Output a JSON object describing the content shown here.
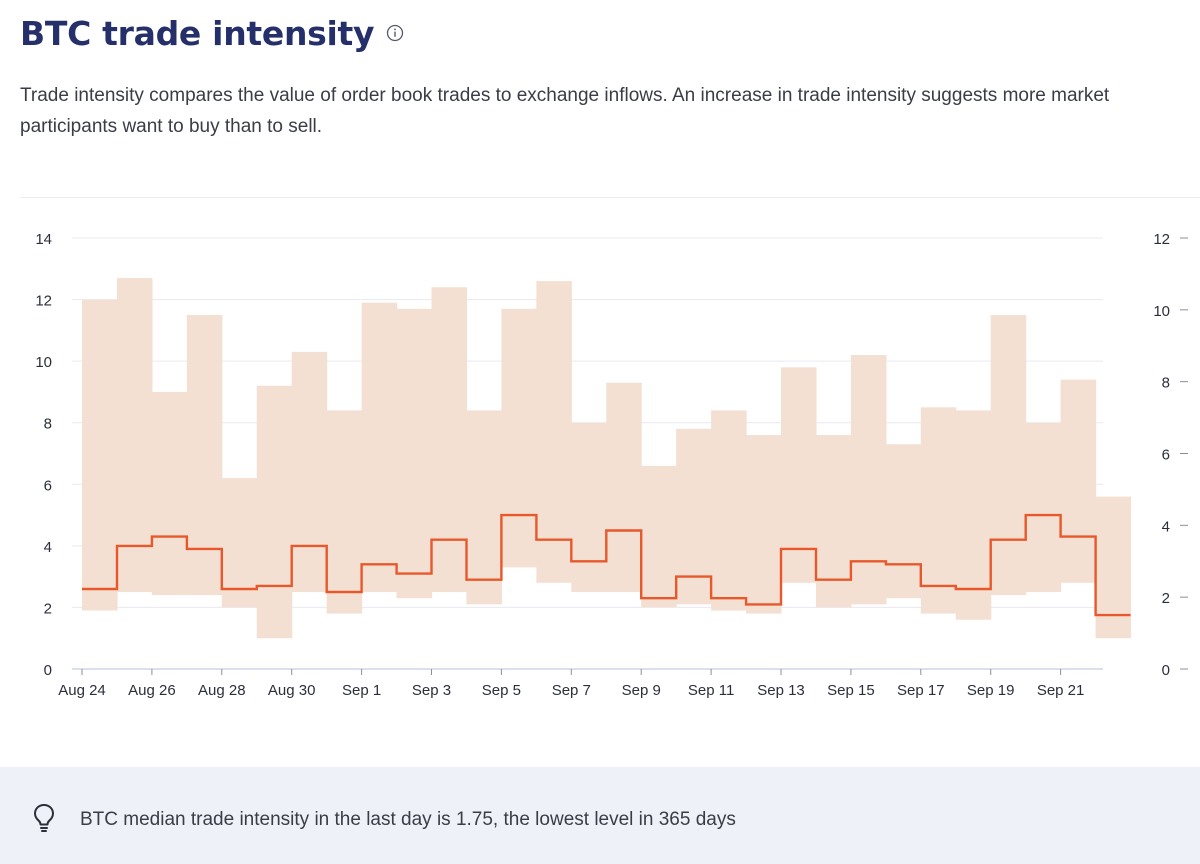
{
  "header": {
    "title": "BTC trade intensity",
    "info_icon": "info-circle-icon",
    "description": "Trade intensity compares the value of order book trades to exchange inflows. An increase in trade intensity suggests more market participants want to buy than to sell."
  },
  "insight": {
    "icon": "lightbulb-icon",
    "text": "BTC median trade intensity in the last day is 1.75, the lowest level in 365 days"
  },
  "colors": {
    "title": "#25306b",
    "median_line": "#e8582a",
    "range_band": "#f4e0d3",
    "insight_bg": "#eef1f8"
  },
  "chart_data": {
    "type": "line",
    "grid": true,
    "legend": "none",
    "x_tick_labels": [
      "Aug 24",
      "Aug 26",
      "Aug 28",
      "Aug 30",
      "Sep 1",
      "Sep 3",
      "Sep 5",
      "Sep 7",
      "Sep 9",
      "Sep 11",
      "Sep 13",
      "Sep 15",
      "Sep 17",
      "Sep 19",
      "Sep 21"
    ],
    "left_axis": {
      "ylim": [
        0,
        14
      ],
      "ticks": [
        0,
        2,
        4,
        6,
        8,
        10,
        12,
        14
      ]
    },
    "right_axis": {
      "ylim": [
        0,
        12
      ],
      "ticks": [
        0,
        2,
        4,
        6,
        8,
        10,
        12
      ]
    },
    "x": [
      "Aug 24",
      "Aug 25",
      "Aug 26",
      "Aug 27",
      "Aug 28",
      "Aug 29",
      "Aug 30",
      "Aug 31",
      "Sep 1",
      "Sep 2",
      "Sep 3",
      "Sep 4",
      "Sep 5",
      "Sep 6",
      "Sep 7",
      "Sep 8",
      "Sep 9",
      "Sep 10",
      "Sep 11",
      "Sep 12",
      "Sep 13",
      "Sep 14",
      "Sep 15",
      "Sep 16",
      "Sep 17",
      "Sep 18",
      "Sep 19",
      "Sep 20",
      "Sep 21",
      "Sep 22"
    ],
    "series": [
      {
        "kind": "band",
        "high": [
          12.0,
          12.7,
          9.0,
          11.5,
          6.2,
          9.2,
          10.3,
          8.4,
          11.9,
          11.7,
          12.4,
          8.4,
          11.7,
          12.6,
          8.0,
          9.3,
          6.6,
          7.8,
          8.4,
          7.6,
          9.8,
          7.6,
          10.2,
          7.3,
          8.5,
          8.4,
          11.5,
          8.0,
          9.4,
          5.6
        ],
        "low": [
          1.9,
          2.5,
          2.4,
          2.4,
          2.0,
          1.0,
          2.5,
          1.8,
          2.5,
          2.3,
          2.5,
          2.1,
          3.3,
          2.8,
          2.5,
          2.5,
          2.0,
          2.1,
          1.9,
          1.8,
          2.8,
          2.0,
          2.1,
          2.3,
          1.8,
          1.6,
          2.4,
          2.5,
          2.8,
          1.0
        ]
      },
      {
        "kind": "step",
        "values": [
          2.6,
          4.0,
          4.3,
          3.9,
          2.6,
          2.7,
          4.0,
          2.5,
          3.4,
          3.1,
          4.2,
          2.9,
          5.0,
          4.2,
          3.5,
          4.5,
          2.3,
          3.0,
          2.3,
          2.1,
          3.9,
          2.9,
          3.5,
          3.4,
          2.7,
          2.6,
          4.2,
          5.0,
          4.3,
          1.75
        ]
      }
    ]
  }
}
